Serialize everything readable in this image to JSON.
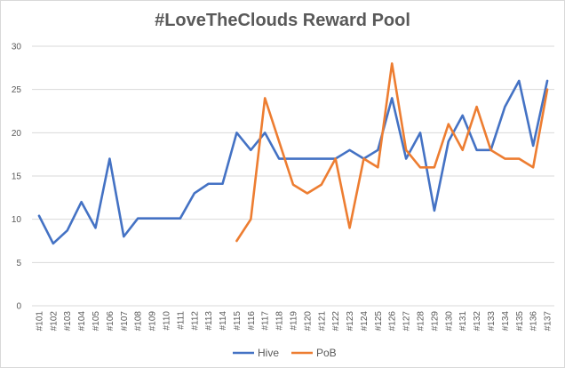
{
  "chart_data": {
    "type": "line",
    "title": "#LoveTheClouds Reward Pool",
    "xlabel": "",
    "ylabel": "",
    "ylim": [
      0,
      30
    ],
    "yticks": [
      0,
      5,
      10,
      15,
      20,
      25,
      30
    ],
    "grid": true,
    "legend_position": "bottom",
    "categories": [
      "#101",
      "#102",
      "#103",
      "#104",
      "#105",
      "#106",
      "#107",
      "#108",
      "#109",
      "#110",
      "#111",
      "#112",
      "#113",
      "#114",
      "#115",
      "#116",
      "#117",
      "#118",
      "#119",
      "#120",
      "#121",
      "#122",
      "#123",
      "#124",
      "#125",
      "#126",
      "#127",
      "#128",
      "#129",
      "#130",
      "#131",
      "#132",
      "#133",
      "#134",
      "#135",
      "#136",
      "#137"
    ],
    "series": [
      {
        "name": "Hive",
        "color": "#4472c4",
        "values": [
          10.4,
          7.2,
          8.7,
          12,
          9,
          17,
          8,
          10.1,
          10.1,
          10.1,
          10.1,
          13,
          14.1,
          14.1,
          20,
          18,
          20,
          17,
          17,
          17,
          17,
          17,
          18,
          17,
          18,
          24,
          17,
          20,
          11,
          19,
          22,
          18,
          18,
          23,
          26,
          18.5,
          26
        ]
      },
      {
        "name": "PoB",
        "color": "#ed7d31",
        "values": [
          null,
          null,
          null,
          null,
          null,
          null,
          null,
          null,
          null,
          null,
          null,
          null,
          null,
          null,
          7.5,
          10,
          24,
          19,
          14,
          13,
          14,
          17,
          9,
          17,
          16,
          28,
          18,
          16,
          16,
          21,
          18,
          23,
          18,
          17,
          17,
          16,
          25
        ]
      }
    ]
  }
}
